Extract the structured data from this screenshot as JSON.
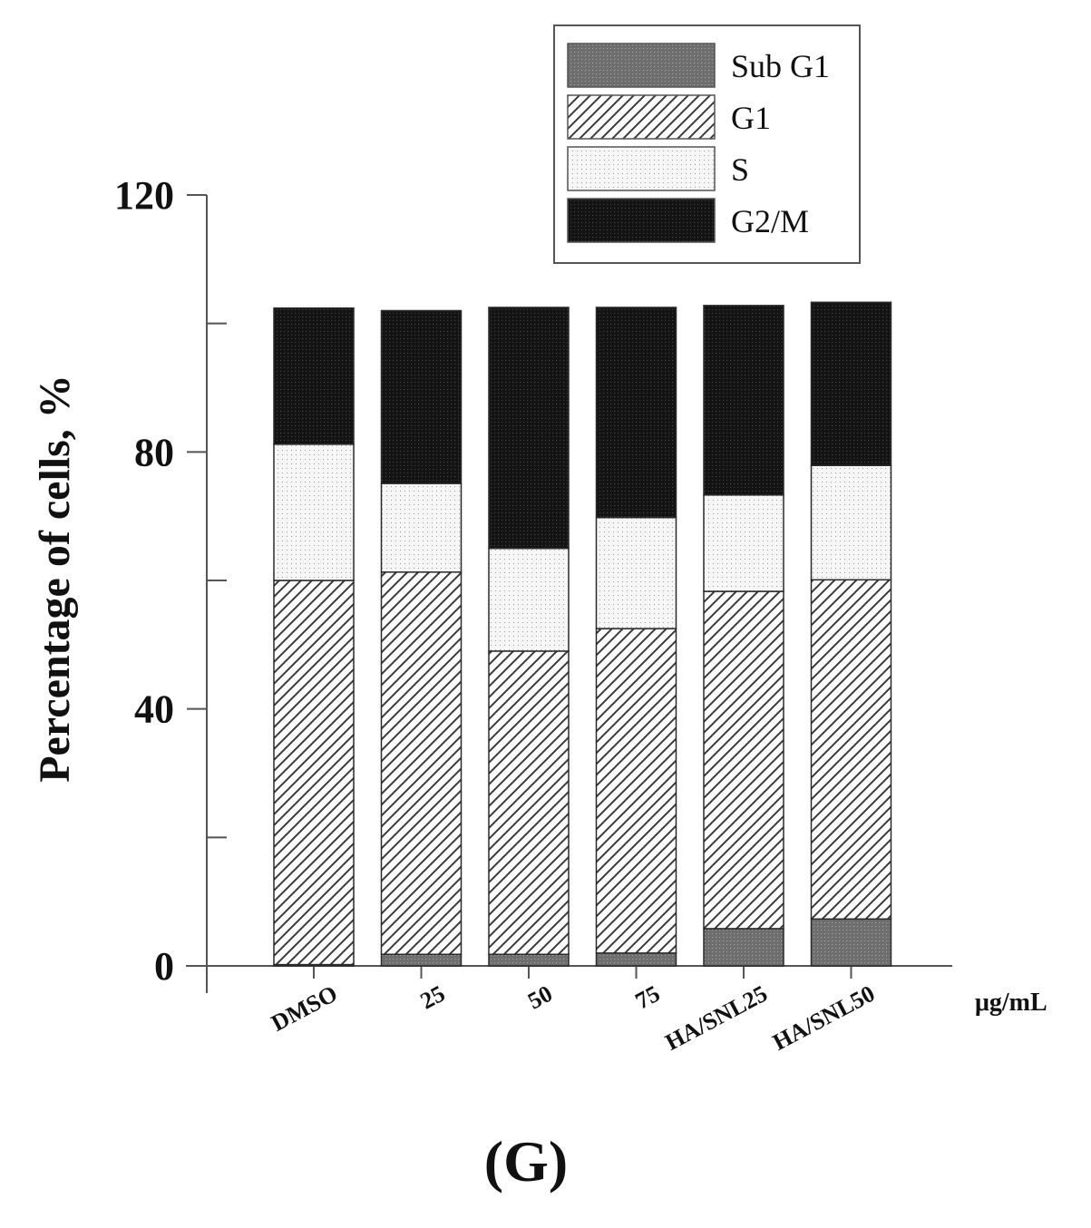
{
  "chart_data": {
    "type": "bar",
    "stacked": true,
    "categories": [
      "DMSO",
      "25",
      "50",
      "75",
      "HA/SNL25",
      "HA/SNL50"
    ],
    "series": [
      {
        "name": "Sub G1",
        "color": "#7a7a7a",
        "pattern": "dense-dots",
        "values": [
          0.2,
          1.8,
          1.8,
          2.0,
          5.8,
          7.3
        ]
      },
      {
        "name": "G1",
        "color": "#ffffff",
        "pattern": "diagonal-hatch",
        "values": [
          59.8,
          59.5,
          47.2,
          50.5,
          52.5,
          52.8
        ]
      },
      {
        "name": "S",
        "color": "#f4f4f4",
        "pattern": "sparse-dots",
        "values": [
          21.2,
          13.8,
          16.0,
          17.3,
          15.0,
          17.8
        ]
      },
      {
        "name": "G2/M",
        "color": "#141414",
        "pattern": "dense-dots",
        "values": [
          21.2,
          26.9,
          37.5,
          32.7,
          29.5,
          25.4
        ]
      }
    ],
    "ylabel": "Percentage of cells, %",
    "xlabel_unit": "μg/mL",
    "ylim": [
      0,
      120
    ],
    "yticks": [
      0,
      40,
      80,
      120
    ],
    "legend_position": "top-right",
    "grid": false
  },
  "panel_label": "(G)"
}
